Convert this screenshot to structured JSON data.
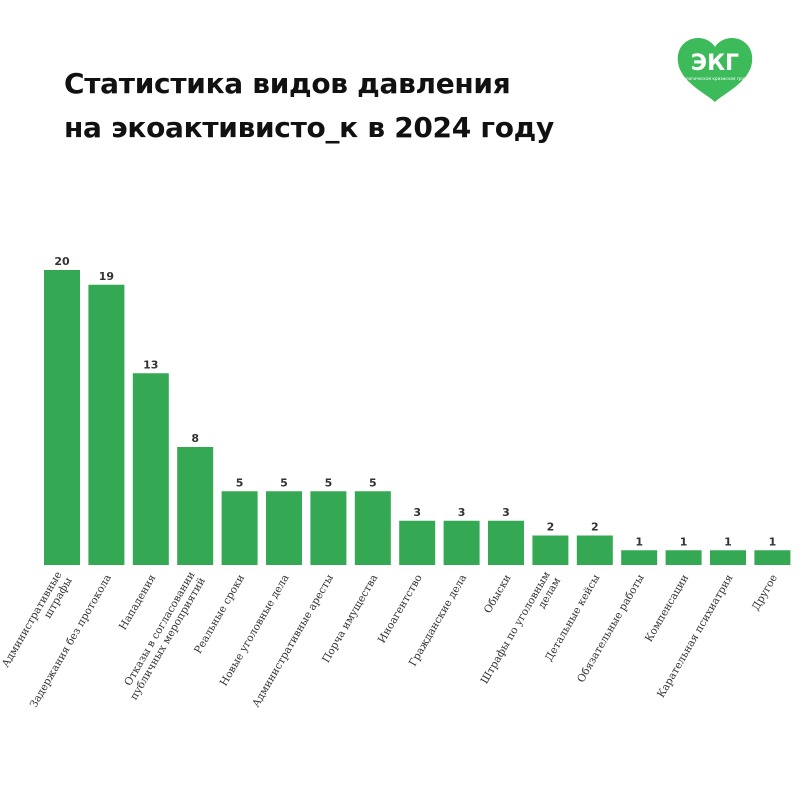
{
  "title_line1": "Статистика видов давления",
  "title_line2": "на экоактивисто_к в 2024 году",
  "logo": {
    "text": "ЭКГ",
    "tagline": "Экологическая кризисная группа",
    "color": "#3dbb5a"
  },
  "colors": {
    "bar": "#35a853",
    "text": "#111111"
  },
  "chart_data": {
    "type": "bar",
    "title": "Статистика видов давления на экоактивисто_к в 2024 году",
    "categories": [
      "Административные штрафы",
      "Задержания без протокола",
      "Нападения",
      "Отказы в согласовании публичных мероприятий",
      "Реальные сроки",
      "Новые уголовные дела",
      "Административные аресты",
      "Порча имущества",
      "Иноагентство",
      "Гражданские дела",
      "Обыски",
      "Штрафы по уголовным делам",
      "Детальные кейсы",
      "Обязательные работы",
      "Компенсации",
      "Карательная психиатрия",
      "Другое"
    ],
    "label_lines": [
      [
        "Административные",
        "штрафы"
      ],
      [
        "Задержания без протокола"
      ],
      [
        "Нападения"
      ],
      [
        "Отказы в согласовании",
        "публичных мероприятий"
      ],
      [
        "Реальные сроки"
      ],
      [
        "Новые уголовные дела"
      ],
      [
        "Административные аресты"
      ],
      [
        "Порча имущества"
      ],
      [
        "Иноагентство"
      ],
      [
        "Гражданские дела"
      ],
      [
        "Обыски"
      ],
      [
        "Штрафы по уголовным",
        "делам"
      ],
      [
        "Детальные кейсы"
      ],
      [
        "Обязательные работы"
      ],
      [
        "Компенсации"
      ],
      [
        "Карательная психиатрия"
      ],
      [
        "Другое"
      ]
    ],
    "values": [
      20,
      19,
      13,
      8,
      5,
      5,
      5,
      5,
      3,
      3,
      3,
      2,
      2,
      1,
      1,
      1,
      1
    ],
    "xlabel": "",
    "ylabel": "",
    "ylim": [
      0,
      20
    ],
    "grid": false,
    "legend": "none"
  }
}
